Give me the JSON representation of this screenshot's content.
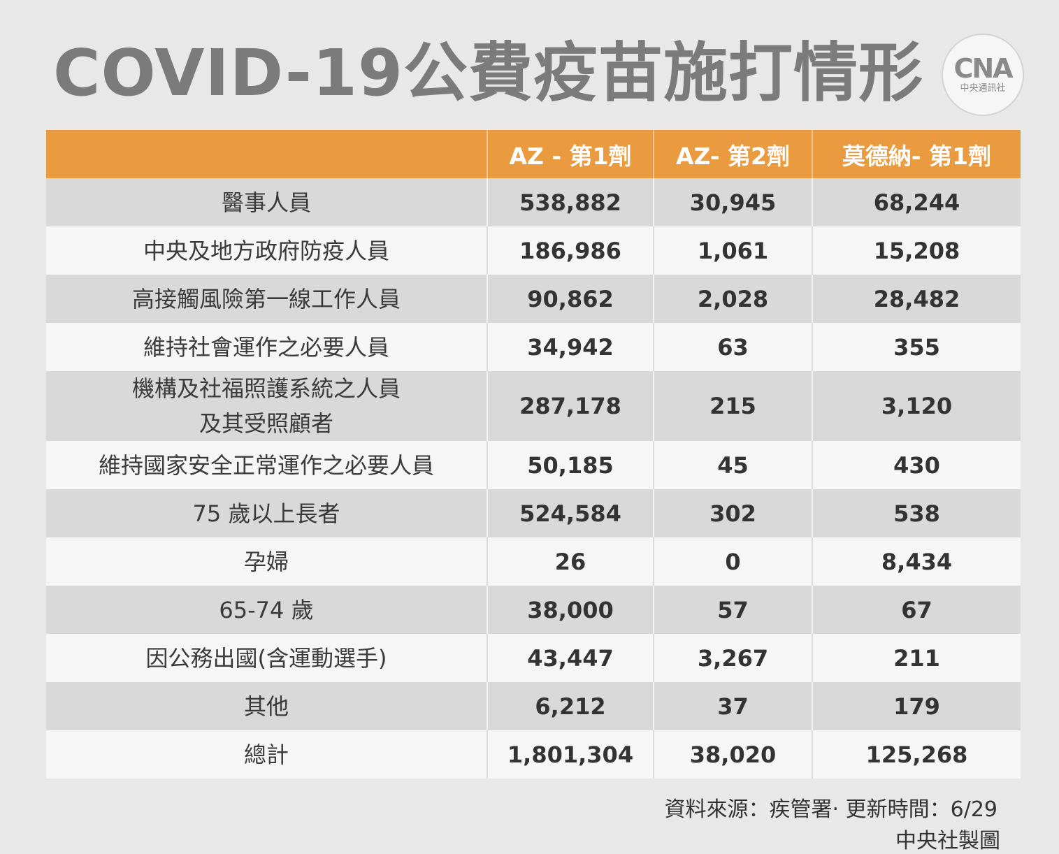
{
  "title": "COVID-19公費疫苗施打情形",
  "logo": {
    "mark": "CNA",
    "sub": "中央通訊社"
  },
  "chart_data": {
    "type": "table",
    "title": "COVID-19公費疫苗施打情形",
    "columns": [
      "",
      "AZ - 第1劑",
      "AZ- 第2劑",
      "莫德納- 第1劑"
    ],
    "rows": [
      {
        "label": "醫事人員",
        "values": [
          "538,882",
          "30,945",
          "68,244"
        ]
      },
      {
        "label": "中央及地方政府防疫人員",
        "values": [
          "186,986",
          "1,061",
          "15,208"
        ]
      },
      {
        "label": "高接觸風險第一線工作人員",
        "values": [
          "90,862",
          "2,028",
          "28,482"
        ]
      },
      {
        "label": "維持社會運作之必要人員",
        "values": [
          "34,942",
          "63",
          "355"
        ]
      },
      {
        "label": "機構及社福照護系統之人員",
        "label2": "及其受照顧者",
        "values": [
          "287,178",
          "215",
          "3,120"
        ]
      },
      {
        "label": "維持國家安全正常運作之必要人員",
        "values": [
          "50,185",
          "45",
          "430"
        ]
      },
      {
        "label": "75 歲以上長者",
        "values": [
          "524,584",
          "302",
          "538"
        ]
      },
      {
        "label": "孕婦",
        "values": [
          "26",
          "0",
          "8,434"
        ]
      },
      {
        "label": "65-74 歲",
        "values": [
          "38,000",
          "57",
          "67"
        ]
      },
      {
        "label": "因公務出國(含運動選手)",
        "values": [
          "43,447",
          "3,267",
          "211"
        ]
      },
      {
        "label": "其他",
        "values": [
          "6,212",
          "37",
          "179"
        ]
      },
      {
        "label": "總計",
        "values": [
          "1,801,304",
          "38,020",
          "125,268"
        ]
      }
    ],
    "header_color": "#ea9a3f"
  },
  "footer": {
    "source": "資料來源：疾管署‧  更新時間：6/29",
    "credit": "中央社製圖"
  }
}
